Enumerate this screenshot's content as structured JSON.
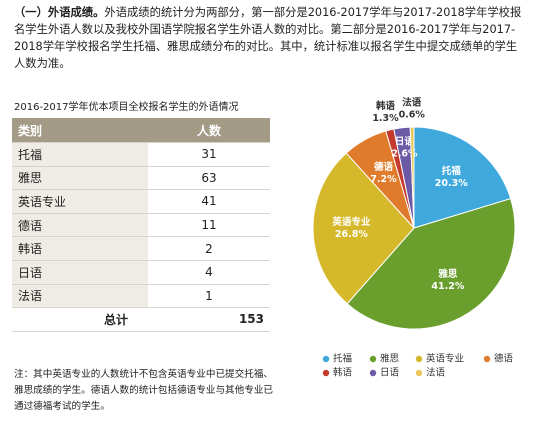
{
  "intro": {
    "lead": "（一）外语成绩。",
    "text": "外语成绩的统计分为两部分，第一部分是2016-2017学年与2017-2018学年学校报名学生外语人数以及我校外国语学院报名学生外语人数的对比。第二部分是2016-2017学年与2017-2018学年学校报名学生托福、雅思成绩分布的对比。其中，统计标准以报名学生中提交成绩单的学生人数为准。"
  },
  "table": {
    "caption": "2016-2017学年优本项目全校报名学生的外语情况",
    "header": [
      "类别",
      "人数"
    ],
    "rows": [
      [
        "托福",
        "31"
      ],
      [
        "雅思",
        "63"
      ],
      [
        "英语专业",
        "41"
      ],
      [
        "德语",
        "11"
      ],
      [
        "韩语",
        "2"
      ],
      [
        "日语",
        "4"
      ],
      [
        "法语",
        "1"
      ]
    ],
    "total": [
      "总计",
      "153"
    ]
  },
  "note": "注：其中英语专业的人数统计不包含英语专业中已提交托福、雅思成绩的学生。德语人数的统计包括德语专业与其他专业已通过德福考试的学生。",
  "chart_data": {
    "type": "pie",
    "categories": [
      "托福",
      "雅思",
      "英语专业",
      "德语",
      "韩语",
      "日语",
      "法语"
    ],
    "values": [
      20.3,
      41.2,
      26.8,
      7.2,
      1.3,
      2.6,
      0.6
    ],
    "value_labels": [
      "20.3%",
      "41.2%",
      "26.8%",
      "7.2%",
      "1.3%",
      "2.6%",
      "0.6%"
    ],
    "colors": [
      "#3fa9dd",
      "#6a9f2d",
      "#d5b92b",
      "#e07b2b",
      "#c53a2e",
      "#6b5aa6",
      "#e9c85b"
    ]
  }
}
